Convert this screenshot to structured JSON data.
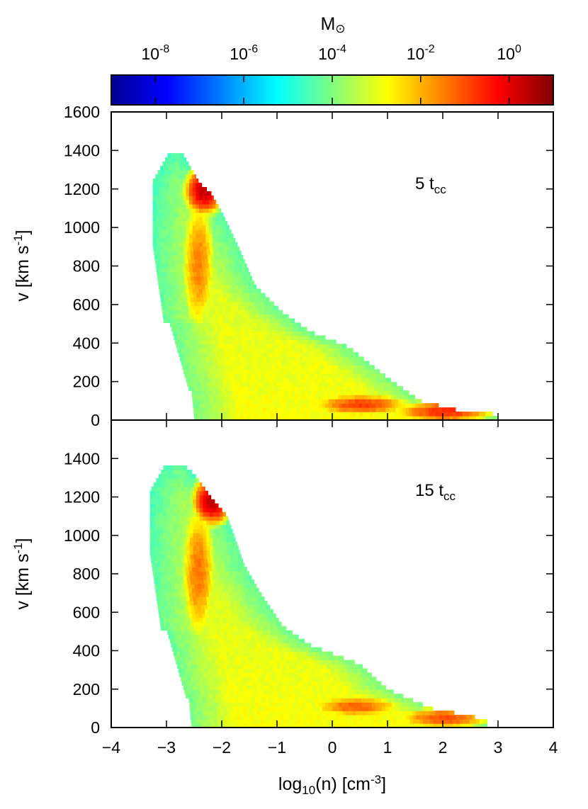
{
  "chart_data": {
    "type": "heatmap",
    "colorbar": {
      "label": "M",
      "label_symbol": "⊙",
      "scale": "log",
      "ticks": [
        {
          "base": "10",
          "exp": "-8",
          "value": -8
        },
        {
          "base": "10",
          "exp": "-6",
          "value": -6
        },
        {
          "base": "10",
          "exp": "-4",
          "value": -4
        },
        {
          "base": "10",
          "exp": "-2",
          "value": -2
        },
        {
          "base": "10",
          "exp": "0",
          "value": 0
        }
      ],
      "range_log10": [
        -9,
        1
      ],
      "colormap": [
        "#00008f",
        "#0000ff",
        "#0080ff",
        "#00ffff",
        "#80ff80",
        "#ffff00",
        "#ff8000",
        "#ff0000",
        "#800000"
      ]
    },
    "xaxis": {
      "label_main": "log",
      "label_sub": "10",
      "label_mid": "(n) [cm",
      "label_sup": "-3",
      "label_end": "]",
      "range": [
        -4,
        4
      ],
      "ticks": [
        "−4",
        "−3",
        "−2",
        "−1",
        "0",
        "1",
        "2",
        "3",
        "4"
      ]
    },
    "panels": [
      {
        "annotation": {
          "prefix": "5 t",
          "sub": "cc"
        },
        "yaxis": {
          "label_main": "v [km s",
          "label_sup": "-1",
          "label_end": "]",
          "range": [
            0,
            1600
          ],
          "ticks": [
            "0",
            "200",
            "400",
            "600",
            "800",
            "1000",
            "1200",
            "1400",
            "1600"
          ]
        },
        "distribution": {
          "ridge": [
            [
              -2.7,
              1380
            ],
            [
              -2.6,
              1330
            ],
            [
              -2.4,
              1230
            ],
            [
              -2.2,
              1180
            ],
            [
              -2.0,
              1080
            ],
            [
              -1.7,
              900
            ],
            [
              -1.4,
              700
            ],
            [
              -0.9,
              560
            ],
            [
              -0.4,
              460
            ],
            [
              0.3,
              380
            ],
            [
              1.0,
              220
            ],
            [
              1.6,
              100
            ],
            [
              2.3,
              50
            ],
            [
              3.0,
              30
            ]
          ],
          "hot_spots": [
            {
              "x": -2.35,
              "v": 1180,
              "log10_mass": 0.3
            },
            {
              "x": -2.45,
              "v": 800,
              "log10_mass": -1.5
            },
            {
              "x": 0.5,
              "v": 70,
              "log10_mass": -0.8
            },
            {
              "x": 2.0,
              "v": 35,
              "log10_mass": -0.6
            }
          ]
        }
      },
      {
        "annotation": {
          "prefix": "15 t",
          "sub": "cc"
        },
        "yaxis": {
          "label_main": "v [km s",
          "label_sup": "-1",
          "label_end": "]",
          "range": [
            0,
            1600
          ],
          "ticks": [
            "0",
            "200",
            "400",
            "600",
            "800",
            "1000",
            "1200",
            "1400"
          ]
        },
        "distribution": {
          "ridge": [
            [
              -2.7,
              1370
            ],
            [
              -2.5,
              1320
            ],
            [
              -2.2,
              1200
            ],
            [
              -1.9,
              1100
            ],
            [
              -1.6,
              850
            ],
            [
              -1.3,
              700
            ],
            [
              -0.9,
              530
            ],
            [
              -0.4,
              430
            ],
            [
              0.5,
              330
            ],
            [
              1.0,
              200
            ],
            [
              1.8,
              100
            ],
            [
              2.5,
              60
            ],
            [
              2.8,
              40
            ]
          ],
          "hot_spots": [
            {
              "x": -2.2,
              "v": 1170,
              "log10_mass": 0.4
            },
            {
              "x": -2.45,
              "v": 800,
              "log10_mass": -1.4
            },
            {
              "x": 0.4,
              "v": 100,
              "log10_mass": -1.2
            },
            {
              "x": 2.0,
              "v": 40,
              "log10_mass": -1.0
            }
          ]
        }
      }
    ]
  }
}
